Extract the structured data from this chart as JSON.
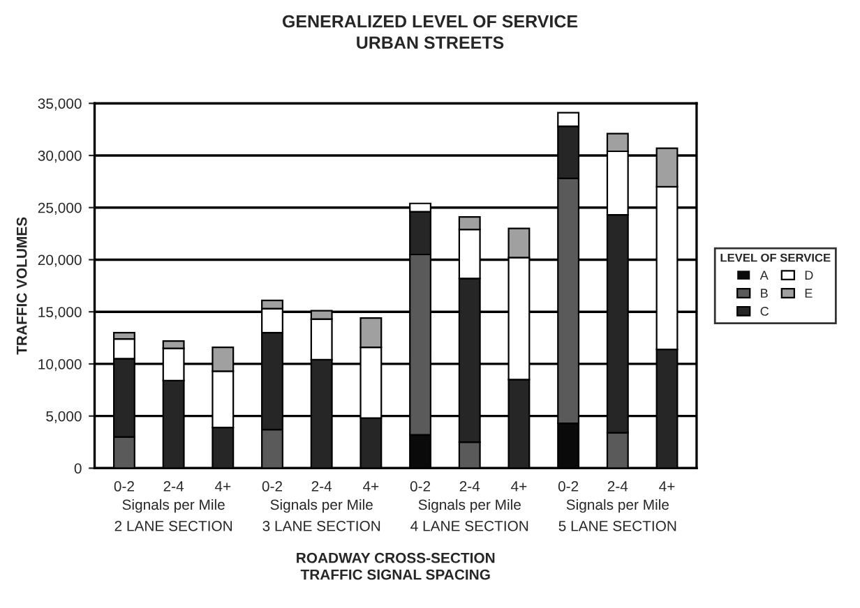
{
  "chart_data": {
    "type": "bar",
    "stacked": true,
    "title": "GENERALIZED LEVEL OF SERVICE",
    "subtitle": "URBAN STREETS",
    "xlabel": "ROADWAY CROSS-SECTION\nTRAFFIC SIGNAL SPACING",
    "ylabel": "TRAFFIC VOLUMES",
    "legend_title": "LEVEL OF SERVICE",
    "legend": "right",
    "grid": "y",
    "categories": [
      "0-2",
      "2-4",
      "4+",
      "0-2",
      "2-4",
      "4+",
      "0-2",
      "2-4",
      "4+",
      "0-2",
      "2-4",
      "4+"
    ],
    "series": [
      {
        "name": "A",
        "color": "#0a0a0a",
        "values": [
          0,
          0,
          0,
          0,
          0,
          0,
          3200,
          0,
          0,
          4300,
          0,
          0
        ]
      },
      {
        "name": "B",
        "color": "#5a5a5a",
        "values": [
          3000,
          0,
          0,
          3700,
          0,
          0,
          17300,
          2500,
          0,
          23500,
          3400,
          0
        ]
      },
      {
        "name": "C",
        "color": "#262626",
        "values": [
          7500,
          8400,
          3900,
          9300,
          10400,
          4800,
          4100,
          15700,
          8500,
          5000,
          20900,
          11400
        ]
      },
      {
        "name": "D",
        "color": "#ffffff",
        "values": [
          1900,
          3100,
          5400,
          2300,
          3900,
          6800,
          800,
          4700,
          11700,
          1300,
          6100,
          15600
        ]
      },
      {
        "name": "E",
        "color": "#a0a0a0",
        "values": [
          600,
          700,
          2300,
          800,
          800,
          2800,
          0,
          1200,
          2800,
          0,
          1700,
          3700
        ]
      }
    ],
    "ylim": [
      0,
      35000
    ],
    "yticks": [
      {
        "value": 0,
        "label": "0"
      },
      {
        "value": 5000,
        "label": "5,000"
      },
      {
        "value": 10000,
        "label": "10,000"
      },
      {
        "value": 15000,
        "label": "15,000"
      },
      {
        "value": 20000,
        "label": "20,000"
      },
      {
        "value": 25000,
        "label": "25,000"
      },
      {
        "value": 30000,
        "label": "30,000"
      },
      {
        "value": 35000,
        "label": "35,000"
      }
    ],
    "annotations": [
      "Signals per Mile",
      "2 LANE SECTION",
      "Signals per Mile",
      "3 LANE SECTION",
      "Signals per Mile",
      "4 LANE SECTION",
      "Signals per Mile",
      "5 LANE SECTION"
    ]
  }
}
